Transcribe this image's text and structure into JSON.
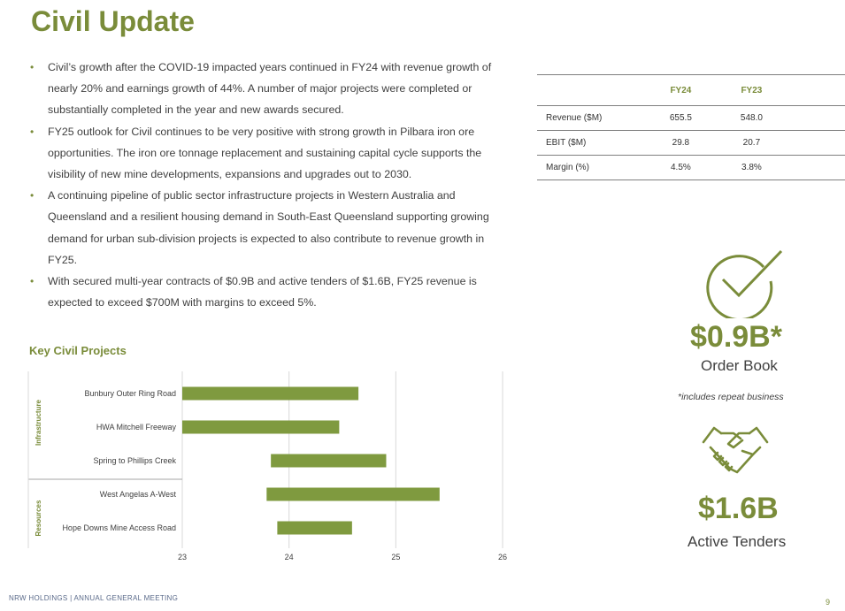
{
  "title": "Civil Update",
  "bullets": [
    "Civil’s growth after the COVID-19 impacted years continued in FY24 with revenue growth of nearly 20% and earnings growth of 44%. A number of major projects were completed or substantially completed in the year and new awards secured.",
    "FY25 outlook for Civil continues to be very positive with strong growth in Pilbara iron ore opportunities. The iron ore tonnage replacement and sustaining capital cycle supports the visibility of new mine developments, expansions and upgrades out to 2030.",
    "A continuing pipeline of public sector infrastructure projects in Western Australia and Queensland and a resilient housing demand in South-East Queensland supporting growing demand for urban sub-division projects is expected to also contribute to revenue growth in FY25.",
    "With secured multi-year contracts of $0.9B and active tenders of $1.6B, FY25 revenue is expected to exceed $700M with margins to exceed 5%."
  ],
  "bullet_marker": "•",
  "table": {
    "headers": [
      "",
      "FY24",
      "FY23"
    ],
    "rows": [
      {
        "label": "Revenue ($M)",
        "fy24": "655.5",
        "fy23": "548.0"
      },
      {
        "label": "EBIT ($M)",
        "fy24": "29.8",
        "fy23": "20.7"
      },
      {
        "label": "Margin (%)",
        "fy24": "4.5%",
        "fy23": "3.8%"
      }
    ]
  },
  "projects_title": "Key Civil Projects",
  "chart_data": {
    "type": "bar",
    "orientation": "horizontal-floating",
    "categories": [
      "Bunbury Outer Ring Road",
      "HWA Mitchell Freeway",
      "Spring to Phillips Creek",
      "West Angelas A-West",
      "Hope Downs Mine Access Road"
    ],
    "groups": [
      {
        "name": "Infrastructure",
        "categories": [
          "Bunbury Outer Ring Road",
          "HWA Mitchell Freeway",
          "Spring to Phillips Creek"
        ]
      },
      {
        "name": "Resources",
        "categories": [
          "West Angelas A-West",
          "Hope Downs Mine Access Road"
        ]
      }
    ],
    "series": [
      {
        "values": [
          [
            23.0,
            24.65
          ],
          [
            23.0,
            24.47
          ],
          [
            23.83,
            24.91
          ],
          [
            23.79,
            25.41
          ],
          [
            23.89,
            24.59
          ]
        ]
      }
    ],
    "xlim": [
      23,
      26
    ],
    "xticks": [
      "23",
      "24",
      "25",
      "26"
    ],
    "grid": true,
    "bar_color": "#7f9a3f"
  },
  "stats": {
    "order_book_value": "$0.9B*",
    "order_book_label": "Order Book",
    "order_book_note": "*includes repeat business",
    "tenders_value": "$1.6B",
    "tenders_label": "Active Tenders"
  },
  "icons": {
    "order": "check-circle-icon",
    "tenders": "handshake-icon"
  },
  "accent_color": "#7a8c3a",
  "footer": "NRW HOLDINGS | ANNUAL GENERAL MEETING",
  "page_number": "9"
}
